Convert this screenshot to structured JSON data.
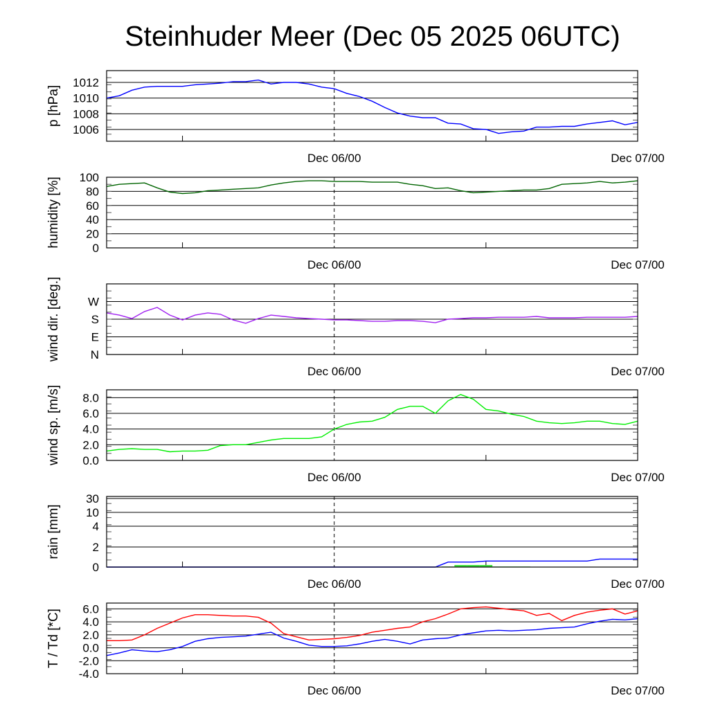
{
  "chart_data": {
    "title": "Steinhuder Meer (Dec 05 2025 06UTC)",
    "type": "line",
    "x_unit": "hours since Dec 05 06UTC",
    "x": [
      0,
      1,
      2,
      3,
      4,
      5,
      6,
      7,
      8,
      9,
      10,
      11,
      12,
      13,
      14,
      15,
      16,
      17,
      18,
      19,
      20,
      21,
      22,
      23,
      24,
      25,
      26,
      27,
      28,
      29,
      30,
      31,
      32,
      33,
      34,
      35,
      36,
      37,
      38,
      39,
      40,
      41,
      42
    ],
    "xlim": [
      0,
      42
    ],
    "x_ticks": [
      {
        "h": 18,
        "label": "Dec 06/00",
        "dashed": true
      },
      {
        "h": 42,
        "label": "Dec 07/00",
        "dashed": false
      }
    ],
    "x_minor_ticks": [
      6,
      30
    ],
    "panels": [
      {
        "name": "pressure",
        "ylabel": "p [hPa]",
        "ylim": [
          1004.5,
          1013.5
        ],
        "yticks": [
          1006,
          1008,
          1010,
          1012
        ],
        "ytick_labels": [
          "1006",
          "1008",
          "1010",
          "1012"
        ],
        "series": [
          {
            "name": "pressure",
            "color": "#0000ff",
            "values": [
              1010,
              1010.3,
              1011,
              1011.4,
              1011.5,
              1011.5,
              1011.5,
              1011.7,
              1011.8,
              1011.9,
              1012.1,
              1012.1,
              1012.3,
              1011.8,
              1012,
              1012,
              1011.8,
              1011.4,
              1011.2,
              1010.6,
              1010.2,
              1009.6,
              1008.8,
              1008.1,
              1007.7,
              1007.5,
              1007.5,
              1006.8,
              1006.7,
              1006.1,
              1006,
              1005.5,
              1005.7,
              1005.8,
              1006.3,
              1006.3,
              1006.4,
              1006.4,
              1006.7,
              1006.9,
              1007.1,
              1006.6,
              1006.9
            ]
          }
        ]
      },
      {
        "name": "humidity",
        "ylabel": "humidity [%]",
        "ylim": [
          0,
          100
        ],
        "yticks": [
          0,
          20,
          40,
          60,
          80,
          100
        ],
        "ytick_labels": [
          "0",
          "20",
          "40",
          "60",
          "80",
          "100"
        ],
        "series": [
          {
            "name": "humidity",
            "color": "#006400",
            "values": [
              87,
              90,
              91,
              92,
              85,
              79,
              77,
              78,
              81,
              82,
              83,
              84,
              85,
              89,
              92,
              94,
              95,
              95,
              94,
              94,
              94,
              93,
              93,
              93,
              90,
              88,
              84,
              85,
              81,
              78,
              79,
              80,
              81,
              82,
              82,
              84,
              90,
              91,
              92,
              94,
              92,
              93,
              95
            ]
          }
        ]
      },
      {
        "name": "wind-direction",
        "ylabel": "wind dir. [deg.]",
        "ylim": [
          0,
          360
        ],
        "yticks": [
          0,
          90,
          180,
          270
        ],
        "ytick_labels": [
          "N",
          "E",
          "S",
          "W"
        ],
        "series": [
          {
            "name": "wind-direction",
            "color": "#a020f0",
            "values": [
              212,
              201,
              183,
              219,
              240,
              201,
              176,
              201,
              212,
              205,
              176,
              159,
              183,
              201,
              194,
              187,
              183,
              180,
              176,
              176,
              173,
              169,
              169,
              173,
              173,
              169,
              162,
              180,
              183,
              187,
              187,
              190,
              190,
              190,
              194,
              187,
              187,
              187,
              190,
              190,
              190,
              190,
              194
            ]
          }
        ]
      },
      {
        "name": "wind-speed",
        "ylabel": "wind sp. [m/s]",
        "ylim": [
          0,
          9
        ],
        "yticks": [
          0,
          2,
          4,
          6,
          8
        ],
        "ytick_labels": [
          "0.0",
          "2.0",
          "4.0",
          "6.0",
          "8.0"
        ],
        "series": [
          {
            "name": "wind-speed",
            "color": "#00ee00",
            "values": [
              1.2,
              1.4,
              1.5,
              1.4,
              1.4,
              1.1,
              1.2,
              1.2,
              1.3,
              1.9,
              2.0,
              2.0,
              2.3,
              2.6,
              2.8,
              2.8,
              2.8,
              3.0,
              4.0,
              4.6,
              4.9,
              5.0,
              5.5,
              6.5,
              6.9,
              6.9,
              6.0,
              7.6,
              8.4,
              7.8,
              6.5,
              6.3,
              5.9,
              5.6,
              5.0,
              4.8,
              4.7,
              4.8,
              5.0,
              5.0,
              4.7,
              4.6,
              5.0
            ]
          }
        ]
      },
      {
        "name": "rain",
        "ylabel": "rain [mm]",
        "ylim": [
          0,
          35
        ],
        "scale": "piecewise",
        "yticks": [
          0,
          2,
          4,
          10,
          30
        ],
        "ytick_labels": [
          "0",
          "2",
          "4",
          "10",
          "30"
        ],
        "bars": {
          "name": "hourly-rain",
          "color": "#33dd33",
          "values": [
            0,
            0,
            0,
            0,
            0,
            0,
            0,
            0,
            0,
            0,
            0,
            0,
            0,
            0,
            0,
            0,
            0,
            0,
            0,
            0,
            0,
            0,
            0,
            0,
            0,
            0,
            0,
            0.05,
            0.2,
            0.2,
            0.2,
            0.05,
            0.05,
            0.05,
            0,
            0,
            0,
            0,
            0,
            0,
            0,
            0,
            0
          ]
        },
        "series": [
          {
            "name": "accumulated-rain",
            "color": "#0000ff",
            "values": [
              0,
              0,
              0,
              0,
              0,
              0,
              0,
              0,
              0,
              0,
              0,
              0,
              0,
              0,
              0,
              0,
              0,
              0,
              0,
              0,
              0,
              0,
              0,
              0,
              0,
              0,
              0,
              0.5,
              0.5,
              0.5,
              0.6,
              0.6,
              0.6,
              0.6,
              0.6,
              0.6,
              0.6,
              0.6,
              0.6,
              0.8,
              0.8,
              0.8,
              0.8
            ]
          }
        ]
      },
      {
        "name": "temperature",
        "ylabel": "T / Td [*C]",
        "ylim": [
          -4,
          6.9
        ],
        "yticks": [
          -4,
          -2,
          0,
          2,
          4,
          6
        ],
        "ytick_labels": [
          "-4.0",
          "-2.0",
          "0.0",
          "2.0",
          "4.0",
          "6.0"
        ],
        "series": [
          {
            "name": "temperature",
            "color": "#ff0000",
            "values": [
              1.1,
              1.1,
              1.2,
              2.0,
              3.0,
              3.8,
              4.6,
              5.1,
              5.1,
              5.0,
              4.9,
              4.9,
              4.7,
              3.8,
              2.2,
              1.7,
              1.2,
              1.3,
              1.4,
              1.6,
              1.9,
              2.4,
              2.7,
              3.0,
              3.2,
              4.0,
              4.5,
              5.2,
              6.0,
              6.2,
              6.3,
              6.1,
              5.9,
              5.7,
              5.0,
              5.3,
              4.2,
              5.0,
              5.5,
              5.8,
              6.0,
              5.2,
              5.7
            ]
          },
          {
            "name": "dewpoint",
            "color": "#0000ff",
            "values": [
              -1.2,
              -0.8,
              -0.3,
              -0.5,
              -0.6,
              -0.3,
              0.2,
              1.0,
              1.4,
              1.6,
              1.7,
              1.8,
              2.1,
              2.4,
              1.5,
              1.0,
              0.4,
              0.2,
              0.2,
              0.3,
              0.6,
              1.0,
              1.3,
              1.0,
              0.6,
              1.2,
              1.4,
              1.5,
              2.0,
              2.3,
              2.6,
              2.7,
              2.6,
              2.7,
              2.8,
              3.0,
              3.1,
              3.2,
              3.7,
              4.1,
              4.4,
              4.3,
              4.5
            ]
          }
        ]
      }
    ]
  }
}
